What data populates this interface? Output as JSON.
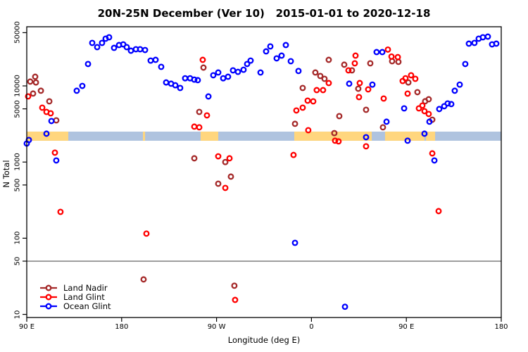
{
  "page": {
    "background": "#FFFFFF"
  },
  "chart_data": {
    "type": "scatter",
    "title": "20N-25N December (Ver 10)   2015-01-01 to 2020-12-18",
    "xlabel": "Longitude (deg E)",
    "ylabel": "N Total",
    "x_axis": {
      "span_deg": 450,
      "ticks": [
        {
          "pos": 0,
          "label": "90 E"
        },
        {
          "pos": 90,
          "label": "180"
        },
        {
          "pos": 180,
          "label": "90 W"
        },
        {
          "pos": 270,
          "label": "0"
        },
        {
          "pos": 360,
          "label": "90 E"
        },
        {
          "pos": 450,
          "label": "180"
        }
      ]
    },
    "y_axis": {
      "scale": "log",
      "top_value": 59800,
      "bottom_value": 9.1,
      "ticks": [
        10,
        50,
        100,
        500,
        1000,
        5000,
        10000,
        50000
      ]
    },
    "reference_line": {
      "value": 50,
      "color": "#7F7F7F"
    },
    "map_strip": {
      "n_range": [
        1905,
        2512
      ],
      "ocean_color": "#AFC3DF",
      "land_color": "#FFD67E",
      "land_segments_deg": [
        [
          0,
          39.4
        ],
        [
          110.2,
          112.2
        ],
        [
          164.9,
          181.6
        ],
        [
          253.7,
          327.2
        ],
        [
          339.8,
          377.2
        ],
        [
          378.6,
          387.3
        ]
      ]
    },
    "legend": {
      "position": "bottom-left"
    },
    "marker": {
      "shape": "open-circle",
      "radius": 3.3,
      "stroke_width": 2.3
    },
    "draw_order": [
      0,
      2,
      1
    ],
    "series": [
      {
        "name": "Land Nadir",
        "color": "#A52A2A",
        "points": [
          [
            8.0,
            13200
          ],
          [
            3.3,
            11400
          ],
          [
            8.7,
            11100
          ],
          [
            13.4,
            8650
          ],
          [
            6.0,
            7940
          ],
          [
            21.4,
            6270
          ],
          [
            28.0,
            3530
          ],
          [
            163.6,
            4560
          ],
          [
            167.6,
            17400
          ],
          [
            158.9,
            1120
          ],
          [
            188.3,
            1000
          ],
          [
            193.6,
            644
          ],
          [
            181.6,
            520
          ],
          [
            110.8,
            28.8
          ],
          [
            196.9,
            23.8
          ],
          [
            254.4,
            3180
          ],
          [
            261.7,
            9400
          ],
          [
            273.7,
            15000
          ],
          [
            278.4,
            13500
          ],
          [
            282.4,
            12400
          ],
          [
            286.4,
            22000
          ],
          [
            291.7,
            2400
          ],
          [
            296.4,
            4010
          ],
          [
            301.1,
            19000
          ],
          [
            308.4,
            16000
          ],
          [
            314.4,
            9190
          ],
          [
            321.8,
            4860
          ],
          [
            325.8,
            19800
          ],
          [
            337.8,
            2860
          ],
          [
            346.5,
            21100
          ],
          [
            352.5,
            20700
          ],
          [
            361.9,
            11100
          ],
          [
            370.5,
            8280
          ],
          [
            377.8,
            6280
          ],
          [
            381.2,
            6680
          ],
          [
            384.6,
            3600
          ]
        ]
      },
      {
        "name": "Land Glint",
        "color": "#FF0000",
        "points": [
          [
            1.3,
            7280
          ],
          [
            14.7,
            5180
          ],
          [
            18.7,
            4560
          ],
          [
            22.7,
            4370
          ],
          [
            26.7,
            1330
          ],
          [
            32.0,
            222
          ],
          [
            113.5,
            115
          ],
          [
            166.9,
            22000
          ],
          [
            170.9,
            4100
          ],
          [
            158.9,
            2920
          ],
          [
            163.6,
            2860
          ],
          [
            181.6,
            1190
          ],
          [
            192.3,
            1120
          ],
          [
            188.3,
            458
          ],
          [
            197.6,
            15.5
          ],
          [
            253.0,
            1240
          ],
          [
            255.7,
            4760
          ],
          [
            261.7,
            5180
          ],
          [
            266.4,
            6410
          ],
          [
            271.7,
            6270
          ],
          [
            267.0,
            2620
          ],
          [
            275.0,
            8810
          ],
          [
            281.0,
            8810
          ],
          [
            286.4,
            10900
          ],
          [
            292.4,
            1910
          ],
          [
            295.7,
            1870
          ],
          [
            305.1,
            16000
          ],
          [
            311.8,
            25000
          ],
          [
            311.1,
            19800
          ],
          [
            315.8,
            10900
          ],
          [
            323.8,
            9000
          ],
          [
            315.1,
            7130
          ],
          [
            338.5,
            6830
          ],
          [
            321.8,
            1610
          ],
          [
            342.5,
            30000
          ],
          [
            345.9,
            24300
          ],
          [
            351.9,
            23900
          ],
          [
            356.5,
            11600
          ],
          [
            359.2,
            12600
          ],
          [
            364.5,
            13800
          ],
          [
            368.5,
            12400
          ],
          [
            361.2,
            7930
          ],
          [
            371.9,
            5070
          ],
          [
            375.2,
            5520
          ],
          [
            377.2,
            4660
          ],
          [
            381.2,
            4280
          ],
          [
            384.6,
            1300
          ],
          [
            390.6,
            227
          ]
        ]
      },
      {
        "name": "Ocean Glint",
        "color": "#0000FF",
        "points": [
          [
            58.1,
            19400
          ],
          [
            47.4,
            8650
          ],
          [
            52.7,
            10000
          ],
          [
            62.1,
            36700
          ],
          [
            66.8,
            32300
          ],
          [
            71.4,
            36700
          ],
          [
            74.8,
            41700
          ],
          [
            78.1,
            43500
          ],
          [
            82.8,
            31600
          ],
          [
            87.5,
            34400
          ],
          [
            91.5,
            35100
          ],
          [
            94.8,
            32300
          ],
          [
            98.8,
            29000
          ],
          [
            103.5,
            30300
          ],
          [
            107.5,
            30300
          ],
          [
            112.2,
            29600
          ],
          [
            117.5,
            21500
          ],
          [
            122.2,
            22000
          ],
          [
            127.5,
            17800
          ],
          [
            132.2,
            11100
          ],
          [
            136.9,
            10700
          ],
          [
            140.9,
            10200
          ],
          [
            145.5,
            9400
          ],
          [
            150.2,
            12600
          ],
          [
            154.9,
            12600
          ],
          [
            158.9,
            12100
          ],
          [
            162.2,
            11900
          ],
          [
            172.3,
            7270
          ],
          [
            176.9,
            13800
          ],
          [
            181.6,
            15000
          ],
          [
            186.3,
            12600
          ],
          [
            190.9,
            13200
          ],
          [
            195.6,
            16000
          ],
          [
            200.3,
            15300
          ],
          [
            205.6,
            16300
          ],
          [
            209.0,
            19400
          ],
          [
            212.3,
            21500
          ],
          [
            221.7,
            15000
          ],
          [
            227.0,
            28400
          ],
          [
            231.0,
            33000
          ],
          [
            237.0,
            23000
          ],
          [
            241.7,
            25000
          ],
          [
            245.7,
            34400
          ],
          [
            250.4,
            21100
          ],
          [
            257.7,
            15700
          ],
          [
            305.8,
            10700
          ],
          [
            327.8,
            10400
          ],
          [
            331.8,
            27800
          ],
          [
            337.2,
            27800
          ],
          [
            341.2,
            3390
          ],
          [
            357.9,
            5070
          ],
          [
            381.9,
            3390
          ],
          [
            391.2,
            4970
          ],
          [
            395.9,
            5410
          ],
          [
            399.2,
            5890
          ],
          [
            402.6,
            5770
          ],
          [
            405.9,
            8650
          ],
          [
            410.6,
            10400
          ],
          [
            415.9,
            19400
          ],
          [
            419.3,
            35900
          ],
          [
            424.6,
            36700
          ],
          [
            428.6,
            41700
          ],
          [
            432.6,
            43500
          ],
          [
            437.3,
            44400
          ],
          [
            441.3,
            35100
          ],
          [
            445.3,
            35900
          ],
          [
            0,
            1750
          ],
          [
            2.0,
            1950
          ],
          [
            18.7,
            2360
          ],
          [
            23.4,
            3460
          ],
          [
            28.0,
            1050
          ],
          [
            321.8,
            2120
          ],
          [
            361.2,
            1910
          ],
          [
            377.2,
            2360
          ],
          [
            386.6,
            1050
          ],
          [
            254.4,
            87
          ],
          [
            301.8,
            12.6
          ]
        ]
      }
    ]
  }
}
